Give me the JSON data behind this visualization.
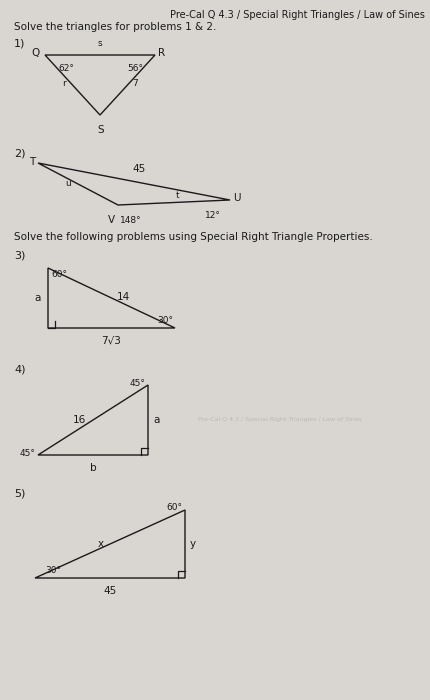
{
  "title": "Pre-Cal Q 4.3 / Special Right Triangles / Law of Sines",
  "subtitle1": "Solve the triangles for problems 1 & 2.",
  "subtitle2": "Solve the following problems using Special Right Triangle Properties.",
  "bg_color": "#d9d5d1",
  "text_color": "#1a1a1a",
  "title_color": "#2c2c2c"
}
